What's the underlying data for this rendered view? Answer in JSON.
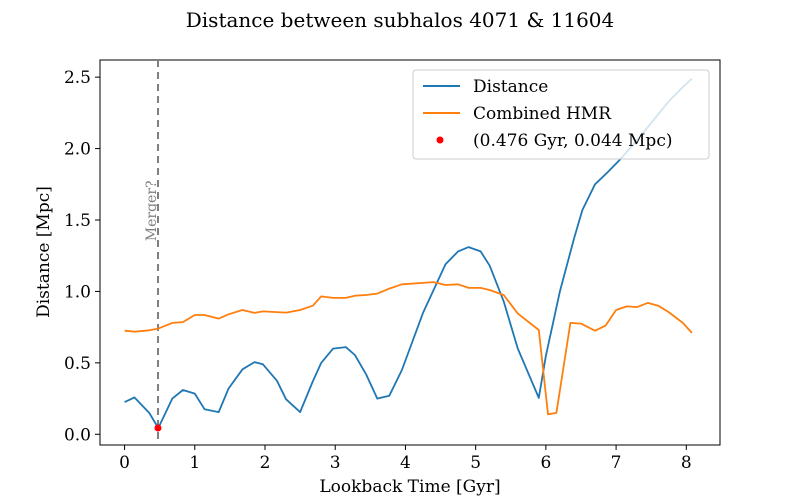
{
  "chart_data": {
    "type": "line",
    "title": "Distance between subhalos 4071 & 11604",
    "xlabel": "Lookback Time [Gyr]",
    "ylabel": "Distance [Mpc]",
    "xlim": [
      -0.35,
      8.48
    ],
    "ylim": [
      -0.075,
      2.62
    ],
    "xticks": [
      0,
      1,
      2,
      3,
      4,
      5,
      6,
      7,
      8
    ],
    "xtick_labels": [
      "0",
      "1",
      "2",
      "3",
      "4",
      "5",
      "6",
      "7",
      "8"
    ],
    "yticks": [
      0.0,
      0.5,
      1.0,
      1.5,
      2.0,
      2.5
    ],
    "ytick_labels": [
      "0.0",
      "0.5",
      "1.0",
      "1.5",
      "2.0",
      "2.5"
    ],
    "grid": false,
    "legend_position": "top-right",
    "series": [
      {
        "name": "Distance",
        "color": "#1f77b4",
        "x": [
          0.0,
          0.14,
          0.35,
          0.48,
          0.68,
          0.83,
          1.0,
          1.14,
          1.34,
          1.48,
          1.68,
          1.85,
          1.97,
          2.17,
          2.3,
          2.5,
          2.68,
          2.8,
          2.97,
          3.15,
          3.28,
          3.44,
          3.6,
          3.77,
          3.95,
          4.25,
          4.57,
          4.75,
          4.9,
          5.07,
          5.2,
          5.4,
          5.6,
          5.9,
          6.0,
          6.2,
          6.4,
          6.52,
          6.7,
          6.87,
          7.05,
          7.25,
          7.5,
          7.75,
          7.95,
          8.08
        ],
        "y": [
          0.225,
          0.258,
          0.15,
          0.044,
          0.25,
          0.31,
          0.285,
          0.175,
          0.155,
          0.32,
          0.455,
          0.505,
          0.49,
          0.375,
          0.245,
          0.155,
          0.37,
          0.5,
          0.6,
          0.61,
          0.555,
          0.42,
          0.25,
          0.27,
          0.45,
          0.85,
          1.19,
          1.28,
          1.31,
          1.28,
          1.18,
          0.93,
          0.6,
          0.255,
          0.55,
          1.0,
          1.37,
          1.57,
          1.75,
          1.83,
          1.92,
          2.03,
          2.18,
          2.33,
          2.43,
          2.49
        ]
      },
      {
        "name": "Combined HMR",
        "color": "#ff7f0e",
        "x": [
          0.0,
          0.14,
          0.35,
          0.48,
          0.68,
          0.83,
          1.0,
          1.14,
          1.34,
          1.48,
          1.68,
          1.85,
          1.97,
          2.17,
          2.3,
          2.5,
          2.68,
          2.8,
          2.97,
          3.15,
          3.28,
          3.44,
          3.6,
          3.77,
          3.95,
          4.25,
          4.4,
          4.57,
          4.75,
          4.9,
          5.07,
          5.2,
          5.4,
          5.6,
          5.9,
          6.03,
          6.15,
          6.35,
          6.5,
          6.7,
          6.85,
          7.0,
          7.15,
          7.3,
          7.45,
          7.6,
          7.75,
          7.95,
          8.08
        ],
        "y": [
          0.725,
          0.718,
          0.728,
          0.74,
          0.78,
          0.785,
          0.835,
          0.835,
          0.81,
          0.84,
          0.87,
          0.85,
          0.86,
          0.855,
          0.852,
          0.87,
          0.9,
          0.965,
          0.955,
          0.955,
          0.97,
          0.975,
          0.985,
          1.02,
          1.05,
          1.06,
          1.065,
          1.045,
          1.05,
          1.025,
          1.025,
          1.01,
          0.975,
          0.845,
          0.73,
          0.14,
          0.15,
          0.78,
          0.775,
          0.725,
          0.76,
          0.87,
          0.895,
          0.89,
          0.92,
          0.9,
          0.855,
          0.78,
          0.71
        ]
      }
    ],
    "marker": {
      "label": "(0.476 Gyr, 0.044 Mpc)",
      "x": 0.476,
      "y": 0.044,
      "color": "#ff0000"
    },
    "vline": {
      "x": 0.476,
      "label": "Merger?",
      "color": "#808080"
    }
  }
}
